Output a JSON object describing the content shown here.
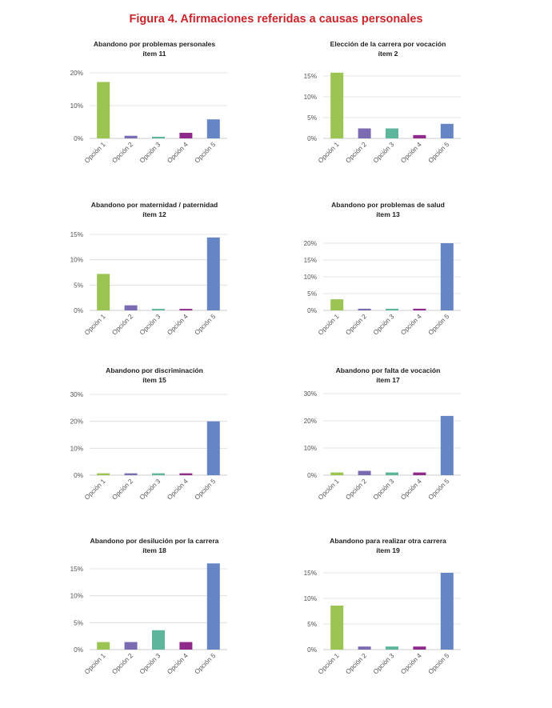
{
  "figure_title": "Figura 4. Afirmaciones referidas a causas personales",
  "colors": [
    "#9bc453",
    "#7b6bb1",
    "#5db59b",
    "#8e2b8a",
    "#6685c4"
  ],
  "chart_data": [
    {
      "type": "bar",
      "title": "Abandono por problemas personales",
      "subtitle": "ítem 11",
      "categories": [
        "Opción 1",
        "Opción 2",
        "Opción 3",
        "Opción 4",
        "Opción 5"
      ],
      "values": [
        17.2,
        0.8,
        0.5,
        1.7,
        5.8
      ],
      "yticks": [
        0,
        10,
        20
      ],
      "ytick_labels": [
        "0%",
        "10%",
        "20%"
      ],
      "ylim": [
        0,
        20
      ]
    },
    {
      "type": "bar",
      "title": "Elección de la carrera por vocación",
      "subtitle": "ítem 2",
      "categories": [
        "Opción 1",
        "Opción 2",
        "Opción 3",
        "Opción 4",
        "Opción 5"
      ],
      "values": [
        15.8,
        2.4,
        2.4,
        0.8,
        3.5
      ],
      "yticks": [
        0,
        5,
        10,
        15
      ],
      "ytick_labels": [
        "0%",
        "5%",
        "10%",
        "15%"
      ],
      "ylim": [
        0,
        15
      ]
    },
    {
      "type": "bar",
      "title": "Abandono por maternidad / paternidad",
      "subtitle": "ítem 12",
      "categories": [
        "Opción 1",
        "Opción 2",
        "Opción 3",
        "Opción 4",
        "Opción 5"
      ],
      "values": [
        7.2,
        1.0,
        0.3,
        0.3,
        14.4
      ],
      "yticks": [
        0,
        5,
        10,
        15
      ],
      "ytick_labels": [
        "0%",
        "5%",
        "10%",
        "15%"
      ],
      "ylim": [
        0,
        15
      ]
    },
    {
      "type": "bar",
      "title": "Abandono por problemas de salud",
      "subtitle": "ítem 13",
      "categories": [
        "Opción 1",
        "Opción 2",
        "Opción 3",
        "Opción 4",
        "Opción 5"
      ],
      "values": [
        3.3,
        0.5,
        0.5,
        0.5,
        20
      ],
      "yticks": [
        0,
        5,
        10,
        15,
        20
      ],
      "ytick_labels": [
        "0%",
        "5%",
        "10%",
        "15%",
        "20%"
      ],
      "ylim": [
        0,
        20
      ]
    },
    {
      "type": "bar",
      "title": "Abandono por discriminación",
      "subtitle": "ítem 15",
      "categories": [
        "Opción 1",
        "Opción 2",
        "Opción 3",
        "Opción 4",
        "Opción 5"
      ],
      "values": [
        0.7,
        0.7,
        0.7,
        0.7,
        20
      ],
      "yticks": [
        0,
        10,
        20,
        30
      ],
      "ytick_labels": [
        "0%",
        "10%",
        "20%",
        "30%"
      ],
      "ylim": [
        0,
        30
      ]
    },
    {
      "type": "bar",
      "title": "Abandono por falta de vocación",
      "subtitle": "ítem 17",
      "categories": [
        "Opción 1",
        "Opción 2",
        "Opción 3",
        "Opción 4",
        "Opción 5"
      ],
      "values": [
        1.0,
        1.6,
        1.0,
        1.0,
        21.8
      ],
      "yticks": [
        0,
        10,
        20,
        30
      ],
      "ytick_labels": [
        "0%",
        "10%",
        "20%",
        "30%"
      ],
      "ylim": [
        0,
        30
      ]
    },
    {
      "type": "bar",
      "title": "Abandono por desilución por la carrera",
      "subtitle": "ítem 18",
      "categories": [
        "Opción 1",
        "Opción 2",
        "Opción 3",
        "Opción 4",
        "Opción 5"
      ],
      "values": [
        1.4,
        1.4,
        3.6,
        1.4,
        16
      ],
      "yticks": [
        0,
        5,
        10,
        15
      ],
      "ytick_labels": [
        "0%",
        "5%",
        "10%",
        "15%"
      ],
      "ylim": [
        0,
        15
      ]
    },
    {
      "type": "bar",
      "title": "Abandono para realizar otra carrera",
      "subtitle": "ítem 19",
      "categories": [
        "Opción 1",
        "Opción 2",
        "Opción 3",
        "Opción 4",
        "Opción 5"
      ],
      "values": [
        8.6,
        0.6,
        0.6,
        0.6,
        15
      ],
      "yticks": [
        0,
        5,
        10,
        15
      ],
      "ytick_labels": [
        "0%",
        "5%",
        "10%",
        "15%"
      ],
      "ylim": [
        0,
        15
      ]
    }
  ]
}
